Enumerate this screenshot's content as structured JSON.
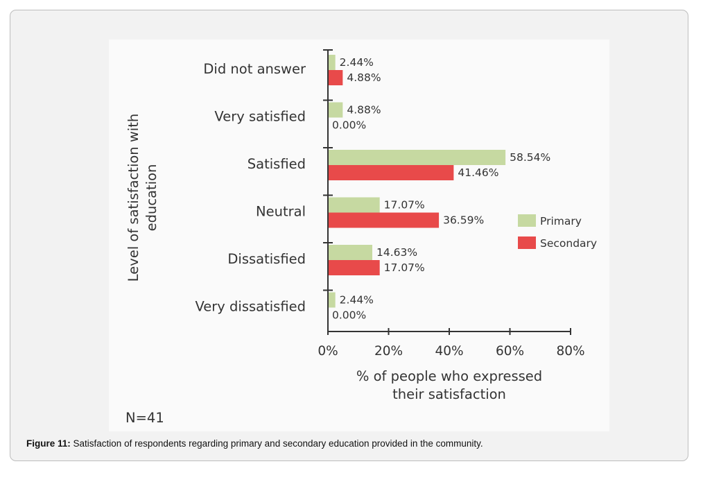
{
  "chart_data": {
    "type": "bar",
    "orientation": "horizontal",
    "categories": [
      "Did not answer",
      "Very satisfied",
      "Satisfied",
      "Neutral",
      "Dissatisfied",
      "Very dissatisfied"
    ],
    "series": [
      {
        "name": "Primary",
        "color": "#c6d9a1",
        "values": [
          2.44,
          4.88,
          58.54,
          17.07,
          14.63,
          2.44
        ],
        "labels": [
          "2.44%",
          "4.88%",
          "58.54%",
          "17.07%",
          "14.63%",
          "2.44%"
        ]
      },
      {
        "name": "Secondary",
        "color": "#e84a4a",
        "values": [
          4.88,
          0.0,
          41.46,
          36.59,
          17.07,
          0.0
        ],
        "labels": [
          "4.88%",
          "0.00%",
          "41.46%",
          "36.59%",
          "17.07%",
          "0.00%"
        ]
      }
    ],
    "xlim": [
      0,
      80
    ],
    "xticks": [
      "0%",
      "20%",
      "40%",
      "60%",
      "80%"
    ],
    "xlabel": [
      "% of people who expressed",
      "their satisfaction"
    ],
    "ylabel": [
      "Level of satisfaction with",
      "education"
    ],
    "legend_position": "right",
    "note": "N=41",
    "grid": false
  },
  "caption": {
    "label": "Figure 11:",
    "text": " Satisfaction of respondents regarding primary and secondary education provided in the community."
  }
}
